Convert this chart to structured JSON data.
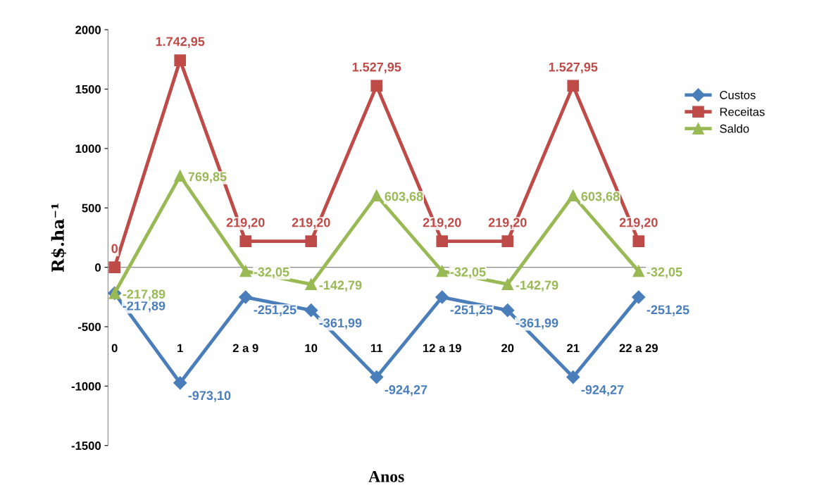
{
  "chart_data": {
    "type": "line",
    "xlabel": "Anos",
    "ylabel": "R$.ha⁻¹",
    "categories": [
      "0",
      "1",
      "2 a 9",
      "10",
      "11",
      "12 a 19",
      "20",
      "21",
      "22 a 29"
    ],
    "ylim": [
      -1500,
      2000
    ],
    "yticks": [
      -1500,
      -1000,
      -500,
      0,
      500,
      1000,
      1500,
      2000
    ],
    "legend": "right",
    "ref_lines": [
      {
        "axis": "y",
        "value": 0,
        "color": "#888888"
      }
    ],
    "series": [
      {
        "name": "Custos",
        "color": "#4a7ebb",
        "marker": "diamond",
        "values": [
          -217.89,
          -973.1,
          -251.25,
          -361.99,
          -924.27,
          -251.25,
          -361.99,
          -924.27,
          -251.25
        ],
        "value_labels": [
          "-217,89",
          "-973,10",
          "-251,25",
          "-361,99",
          "-924,27",
          "-251,25",
          "-361,99",
          "-924,27",
          "-251,25"
        ]
      },
      {
        "name": "Receitas",
        "color": "#be4b48",
        "marker": "square",
        "values": [
          0,
          1742.95,
          219.2,
          219.2,
          1527.95,
          219.2,
          219.2,
          1527.95,
          219.2
        ],
        "value_labels": [
          "0",
          "1.742,95",
          "219,20",
          "219,20",
          "1.527,95",
          "219,20",
          "219,20",
          "1.527,95",
          "219,20"
        ]
      },
      {
        "name": "Saldo",
        "color": "#98b954",
        "marker": "triangle",
        "values": [
          -217.89,
          769.85,
          -32.05,
          -142.79,
          603.68,
          -32.05,
          -142.79,
          603.68,
          -32.05
        ],
        "value_labels": [
          "-217,89",
          "769,85",
          "-32,05",
          "-142,79",
          "603,68",
          "-32,05",
          "-142,79",
          "603,68",
          "-32,05"
        ]
      }
    ]
  }
}
